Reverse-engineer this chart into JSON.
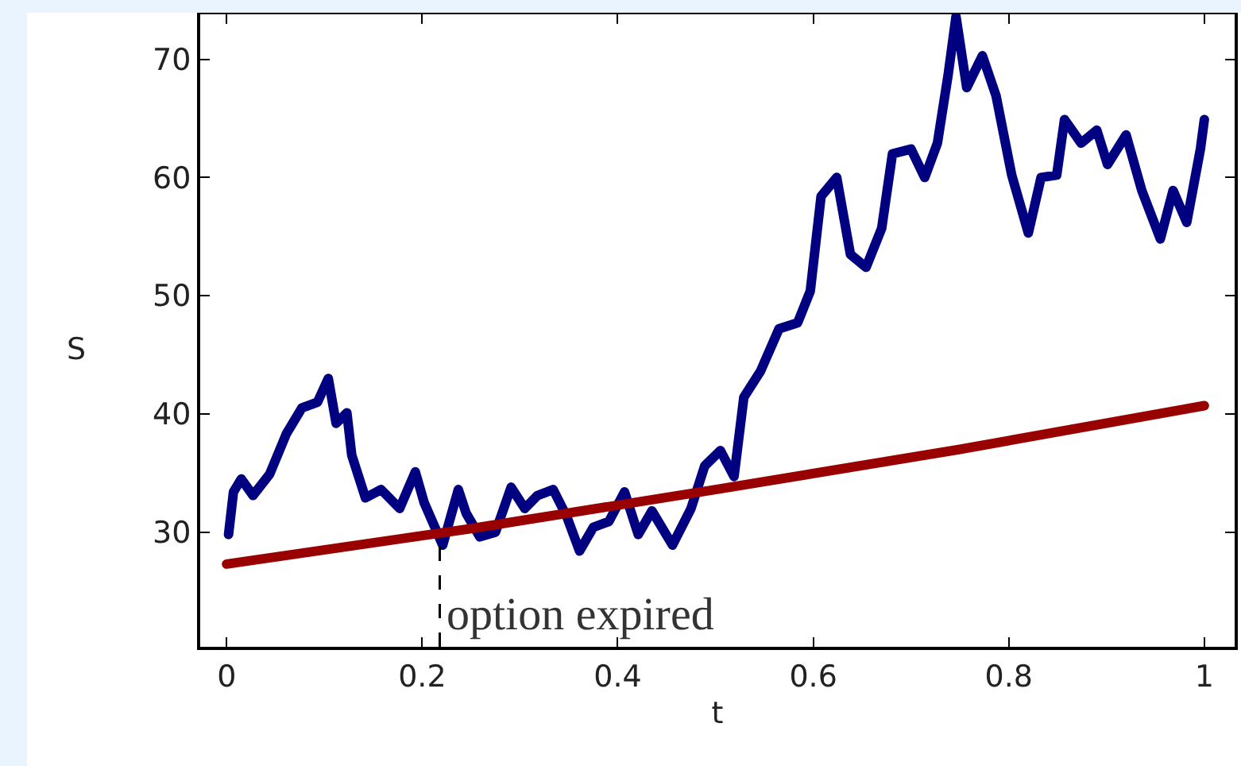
{
  "chart_data": {
    "type": "line",
    "xlabel": "t",
    "ylabel": "S",
    "xlim": [
      -0.027,
      1.031
    ],
    "ylim": [
      20.3,
      73.8
    ],
    "xticks": [
      {
        "value": 0,
        "label": "0"
      },
      0.2,
      0.4,
      0.6,
      0.8,
      1
    ],
    "yticks": [
      30,
      40,
      50,
      60,
      70
    ],
    "grid": false,
    "marker": "none",
    "line_style": "solid",
    "series": [
      {
        "color": "#000080",
        "x": [
          0.002,
          0.007,
          0.015,
          0.027,
          0.044,
          0.061,
          0.077,
          0.093,
          0.104,
          0.112,
          0.123,
          0.128,
          0.142,
          0.158,
          0.177,
          0.193,
          0.202,
          0.221,
          0.237,
          0.245,
          0.259,
          0.275,
          0.291,
          0.305,
          0.318,
          0.334,
          0.348,
          0.361,
          0.375,
          0.391,
          0.407,
          0.421,
          0.435,
          0.456,
          0.475,
          0.489,
          0.505,
          0.519,
          0.529,
          0.546,
          0.565,
          0.584,
          0.597,
          0.608,
          0.624,
          0.638,
          0.654,
          0.67,
          0.681,
          0.7,
          0.714,
          0.727,
          0.738,
          0.746,
          0.757,
          0.773,
          0.787,
          0.803,
          0.82,
          0.833,
          0.849,
          0.857,
          0.874,
          0.89,
          0.901,
          0.92,
          0.936,
          0.955,
          0.968,
          0.982,
          0.996,
          1.0
        ],
        "values": [
          29.8,
          33.4,
          34.5,
          33.1,
          34.9,
          38.3,
          40.5,
          41.0,
          43.0,
          39.2,
          40.1,
          36.5,
          32.9,
          33.6,
          32.0,
          35.1,
          32.5,
          28.9,
          33.6,
          31.6,
          29.6,
          30.0,
          33.8,
          32.0,
          33.1,
          33.6,
          31.3,
          28.4,
          30.4,
          30.9,
          33.4,
          29.8,
          31.8,
          28.9,
          32.0,
          35.6,
          36.9,
          34.7,
          41.4,
          43.6,
          47.2,
          47.7,
          50.4,
          58.4,
          60.0,
          53.5,
          52.4,
          55.7,
          62.0,
          62.4,
          60.0,
          62.9,
          68.7,
          73.6,
          67.6,
          70.3,
          66.9,
          60.2,
          55.3,
          60.0,
          60.2,
          64.9,
          62.9,
          64.0,
          61.1,
          63.6,
          58.9,
          54.8,
          58.9,
          56.2,
          62.4,
          64.9
        ]
      },
      {
        "color": "#990000",
        "x": [
          0,
          0.25,
          0.5,
          0.75,
          1
        ],
        "values": [
          27.3,
          30.3,
          33.6,
          37.0,
          40.7
        ]
      }
    ],
    "ref_lines": [
      {
        "axis": "x",
        "value": 0.218,
        "label": "option expired",
        "line_style": "dashed",
        "color": "#000000"
      }
    ]
  }
}
